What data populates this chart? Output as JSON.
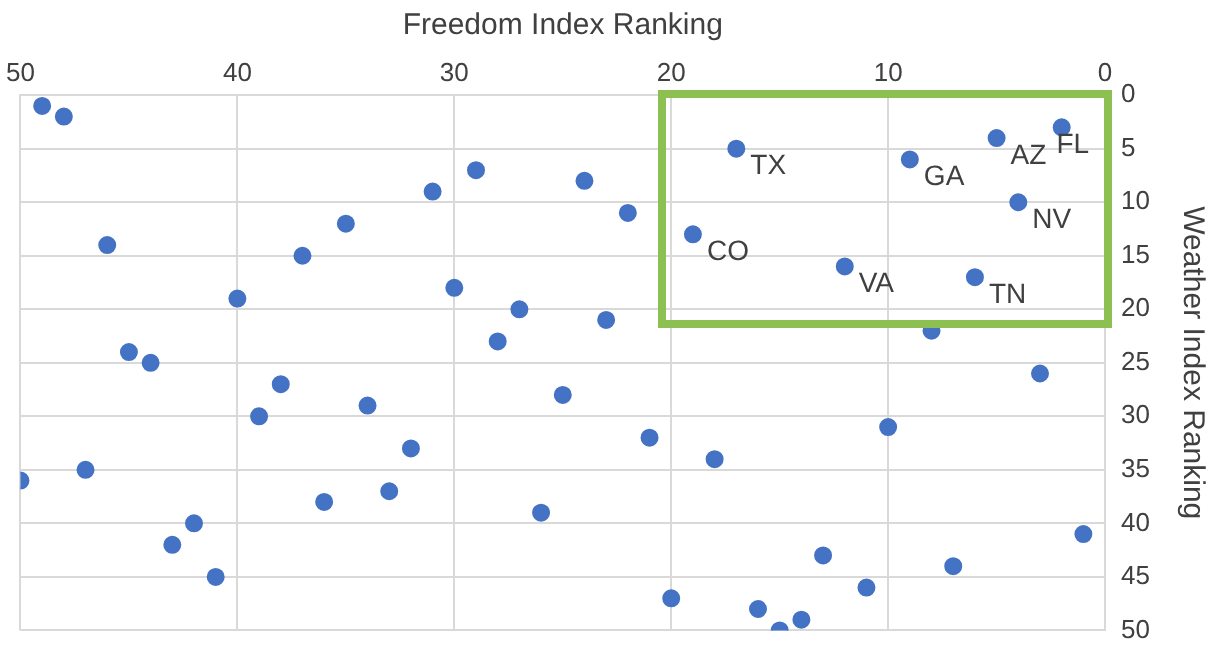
{
  "chart_data": {
    "type": "scatter",
    "xlabel": "Freedom Index Ranking",
    "ylabel": "Weather Index Ranking",
    "x": [
      49,
      48,
      46,
      40,
      37,
      35,
      31,
      29,
      30,
      27,
      28,
      24,
      23,
      22,
      17,
      9,
      5,
      2,
      4,
      19,
      12,
      6,
      8,
      45,
      44,
      38,
      39,
      34,
      32,
      50,
      47,
      36,
      33,
      42,
      43,
      41,
      25,
      26,
      21,
      18,
      10,
      3,
      1,
      13,
      7,
      11,
      20,
      16,
      15,
      14
    ],
    "values": [
      1,
      2,
      14,
      19,
      15,
      12,
      9,
      7,
      18,
      20,
      23,
      8,
      21,
      11,
      5,
      6,
      4,
      3,
      10,
      13,
      16,
      17,
      22,
      24,
      25,
      27,
      30,
      29,
      33,
      36,
      35,
      38,
      37,
      40,
      42,
      45,
      28,
      39,
      32,
      34,
      31,
      26,
      41,
      43,
      44,
      46,
      47,
      48,
      50,
      49
    ],
    "color": "#4472c4",
    "marker": "circle",
    "grid": true,
    "legend": false,
    "xlim": [
      50,
      0
    ],
    "xticks": [
      50,
      40,
      30,
      20,
      10,
      0
    ],
    "ylim": [
      50,
      0
    ],
    "yticks": [
      0,
      5,
      10,
      15,
      20,
      25,
      30,
      35,
      40,
      45,
      50
    ],
    "annotations": [
      {
        "text": "TX",
        "x": 17,
        "y": 5
      },
      {
        "text": "GA",
        "x": 9,
        "y": 6
      },
      {
        "text": "AZ",
        "x": 5,
        "y": 4
      },
      {
        "text": "FL",
        "x": 2,
        "y": 3
      },
      {
        "text": "NV",
        "x": 4,
        "y": 10
      },
      {
        "text": "CO",
        "x": 19,
        "y": 13
      },
      {
        "text": "VA",
        "x": 12,
        "y": 16
      },
      {
        "text": "TN",
        "x": 6,
        "y": 17
      }
    ]
  }
}
